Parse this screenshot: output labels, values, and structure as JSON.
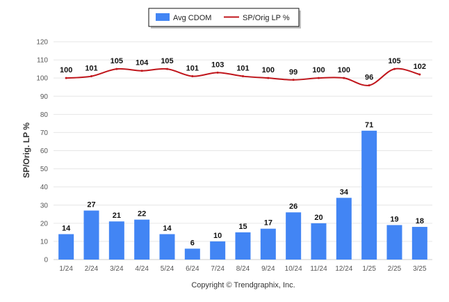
{
  "chart_data": {
    "type": "bar",
    "categories": [
      "1/24",
      "2/24",
      "3/24",
      "4/24",
      "5/24",
      "6/24",
      "7/24",
      "8/24",
      "9/24",
      "10/24",
      "11/24",
      "12/24",
      "1/25",
      "2/25",
      "3/25"
    ],
    "series": [
      {
        "name": "Avg CDOM",
        "type": "bar",
        "color": "#4285f4",
        "values": [
          14,
          27,
          21,
          22,
          14,
          6,
          10,
          15,
          17,
          26,
          20,
          34,
          71,
          19,
          18
        ]
      },
      {
        "name": "SP/Orig LP %",
        "type": "line",
        "color": "#c0151b",
        "values": [
          100,
          101,
          105,
          104,
          105,
          101,
          103,
          101,
          100,
          99,
          100,
          100,
          96,
          105,
          102
        ]
      }
    ],
    "ylabel": "SP/Orig. LP %",
    "ylim": [
      0,
      120
    ],
    "yticks": [
      0,
      10,
      20,
      30,
      40,
      50,
      60,
      70,
      80,
      90,
      100,
      110,
      120
    ],
    "grid": true,
    "legend": "top-center"
  },
  "footer": "Copyright © Trendgraphix, Inc."
}
